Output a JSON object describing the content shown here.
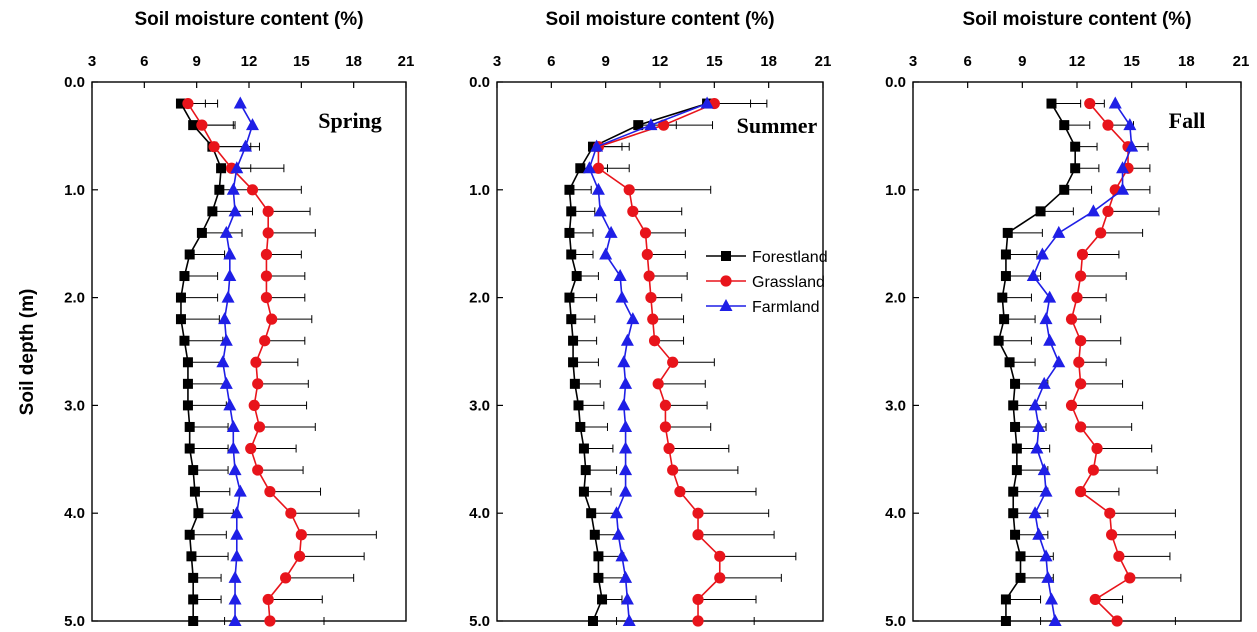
{
  "chart_data": {
    "type": "line",
    "x_axis_label": "Soil moisture content (%)",
    "y_axis_label": "Soil depth (m)",
    "x_ticks": [
      "3",
      "6",
      "9",
      "12",
      "15",
      "18",
      "21"
    ],
    "y_ticks": [
      "0.0",
      "1.0",
      "2.0",
      "3.0",
      "4.0",
      "5.0"
    ],
    "xlim": [
      3,
      21
    ],
    "ylim": [
      0,
      5
    ],
    "y_reversed": true,
    "legend": {
      "placement": "right of summer panel",
      "entries": [
        "Forestland",
        "Grassland",
        "Farmland"
      ]
    },
    "colors": {
      "Forestland": "#000000",
      "Grassland": "#e8141b",
      "Farmland": "#1f1fe6",
      "error_bar": "#000000"
    },
    "markers": {
      "Forestland": "square",
      "Grassland": "circle",
      "Farmland": "triangle"
    },
    "depth": [
      0.2,
      0.4,
      0.6,
      0.8,
      1.0,
      1.2,
      1.4,
      1.6,
      1.8,
      2.0,
      2.2,
      2.4,
      2.6,
      2.8,
      3.0,
      3.2,
      3.4,
      3.6,
      3.8,
      4.0,
      4.2,
      4.4,
      4.6,
      4.8,
      5.0
    ],
    "panels": [
      {
        "label": "Spring",
        "series": [
          {
            "name": "Forestland",
            "values": [
              8.1,
              8.8,
              9.9,
              10.4,
              10.3,
              9.9,
              9.3,
              8.6,
              8.3,
              8.1,
              8.1,
              8.3,
              8.5,
              8.5,
              8.5,
              8.6,
              8.6,
              8.8,
              8.9,
              9.1,
              8.6,
              8.7,
              8.8,
              8.8,
              8.8
            ],
            "errors": [
              2.1,
              2.4,
              2.2,
              1.7,
              2.0,
              2.3,
              2.3,
              2.0,
              1.9,
              2.1,
              2.2,
              2.2,
              2.1,
              2.2,
              2.2,
              2.2,
              2.2,
              2.0,
              2.0,
              2.0,
              2.1,
              2.1,
              1.6,
              1.6,
              1.8
            ]
          },
          {
            "name": "Grassland",
            "values": [
              8.5,
              9.3,
              10.0,
              11.0,
              12.2,
              13.1,
              13.1,
              13.0,
              13.0,
              13.0,
              13.3,
              12.9,
              12.4,
              12.5,
              12.3,
              12.6,
              12.1,
              12.5,
              13.2,
              14.4,
              15.0,
              14.9,
              14.1,
              13.1,
              13.2
            ],
            "errors": [
              1.0,
              1.8,
              2.6,
              3.0,
              2.8,
              2.4,
              2.7,
              2.0,
              2.2,
              2.2,
              2.3,
              2.3,
              2.4,
              2.9,
              3.0,
              3.2,
              2.6,
              2.6,
              2.9,
              3.9,
              4.3,
              3.7,
              3.9,
              3.1,
              3.1
            ]
          },
          {
            "name": "Farmland",
            "values": [
              11.5,
              12.2,
              11.8,
              11.3,
              11.1,
              11.2,
              10.7,
              10.9,
              10.9,
              10.8,
              10.6,
              10.7,
              10.5,
              10.7,
              10.9,
              11.1,
              11.1,
              11.2,
              11.5,
              11.3,
              11.3,
              11.3,
              11.2,
              11.2,
              11.2
            ],
            "errors": [
              0,
              0,
              0,
              0,
              0,
              0,
              0,
              0,
              0,
              0,
              0,
              0,
              0,
              0,
              0,
              0,
              0,
              0,
              0,
              0,
              0,
              0,
              0,
              0,
              0
            ]
          }
        ]
      },
      {
        "label": "Summer",
        "series": [
          {
            "name": "Forestland",
            "values": [
              14.6,
              10.8,
              8.3,
              7.6,
              7.0,
              7.1,
              7.0,
              7.1,
              7.4,
              7.0,
              7.1,
              7.2,
              7.2,
              7.3,
              7.5,
              7.6,
              7.8,
              7.9,
              7.8,
              8.2,
              8.4,
              8.6,
              8.6,
              8.8,
              8.3
            ],
            "errors": [
              2.4,
              2.1,
              1.6,
              1.5,
              1.2,
              1.3,
              1.3,
              1.2,
              1.2,
              1.5,
              1.3,
              1.3,
              1.4,
              1.4,
              1.4,
              1.5,
              1.6,
              1.7,
              1.5,
              1.4,
              1.3,
              1.4,
              1.4,
              1.1,
              1.3
            ]
          },
          {
            "name": "Grassland",
            "values": [
              15.0,
              12.2,
              8.6,
              8.6,
              10.3,
              10.5,
              11.2,
              11.3,
              11.4,
              11.5,
              11.6,
              11.7,
              12.7,
              11.9,
              12.3,
              12.3,
              12.5,
              12.7,
              13.1,
              14.1,
              14.1,
              15.3,
              15.3,
              14.1,
              14.1
            ],
            "errors": [
              2.9,
              2.7,
              1.7,
              1.7,
              4.5,
              2.7,
              2.2,
              2.1,
              2.1,
              1.7,
              1.7,
              1.6,
              2.3,
              2.6,
              2.3,
              2.5,
              3.3,
              3.6,
              4.2,
              3.9,
              4.2,
              4.2,
              3.4,
              3.2,
              3.1
            ]
          },
          {
            "name": "Farmland",
            "values": [
              14.6,
              11.5,
              8.5,
              8.1,
              8.6,
              8.7,
              9.3,
              9.0,
              9.8,
              9.9,
              10.5,
              10.2,
              10.0,
              10.1,
              10.0,
              10.1,
              10.1,
              10.1,
              10.1,
              9.6,
              9.7,
              9.9,
              10.1,
              10.2,
              10.3
            ],
            "errors": [
              0,
              0,
              0,
              0,
              0,
              0,
              0,
              0,
              0,
              0,
              0,
              0,
              0,
              0,
              0,
              0,
              0,
              0,
              0,
              0,
              0,
              0,
              0,
              0,
              0
            ]
          }
        ]
      },
      {
        "label": "Fall",
        "series": [
          {
            "name": "Forestland",
            "values": [
              10.6,
              11.3,
              11.9,
              11.9,
              11.3,
              10.0,
              8.2,
              8.1,
              8.1,
              7.9,
              8.0,
              7.7,
              8.3,
              8.6,
              8.5,
              8.6,
              8.7,
              8.7,
              8.5,
              8.5,
              8.6,
              8.9,
              8.9,
              8.1,
              8.1
            ],
            "errors": [
              1.6,
              1.4,
              1.2,
              1.3,
              1.5,
              1.8,
              1.9,
              1.7,
              1.9,
              1.6,
              1.7,
              1.8,
              1.4,
              1.8,
              1.8,
              1.7,
              1.8,
              1.7,
              1.9,
              1.9,
              1.8,
              1.8,
              1.8,
              1.9,
              1.9
            ]
          },
          {
            "name": "Grassland",
            "values": [
              12.7,
              13.7,
              14.8,
              14.8,
              14.1,
              13.7,
              13.3,
              12.3,
              12.2,
              12.0,
              11.7,
              12.2,
              12.1,
              12.2,
              11.7,
              12.2,
              13.1,
              12.9,
              12.2,
              13.8,
              13.9,
              14.3,
              14.9,
              13.0,
              14.2
            ],
            "errors": [
              0.8,
              1.4,
              1.1,
              1.2,
              1.9,
              2.8,
              2.3,
              2.0,
              2.5,
              1.6,
              1.6,
              2.2,
              1.5,
              2.3,
              3.9,
              2.8,
              3.0,
              3.5,
              2.1,
              3.6,
              3.5,
              2.8,
              2.8,
              1.5,
              3.2
            ]
          },
          {
            "name": "Farmland",
            "values": [
              14.1,
              14.9,
              15.0,
              14.5,
              14.5,
              12.9,
              11.0,
              10.1,
              9.6,
              10.5,
              10.3,
              10.5,
              11.0,
              10.2,
              9.7,
              9.9,
              9.8,
              10.2,
              10.3,
              9.7,
              9.9,
              10.3,
              10.4,
              10.6,
              10.8
            ],
            "errors": [
              0,
              0,
              0,
              0,
              0,
              0,
              0,
              0,
              0,
              0,
              0,
              0,
              0,
              0,
              0,
              0,
              0,
              0,
              0,
              0,
              0,
              0,
              0,
              0,
              0
            ]
          }
        ]
      }
    ]
  }
}
